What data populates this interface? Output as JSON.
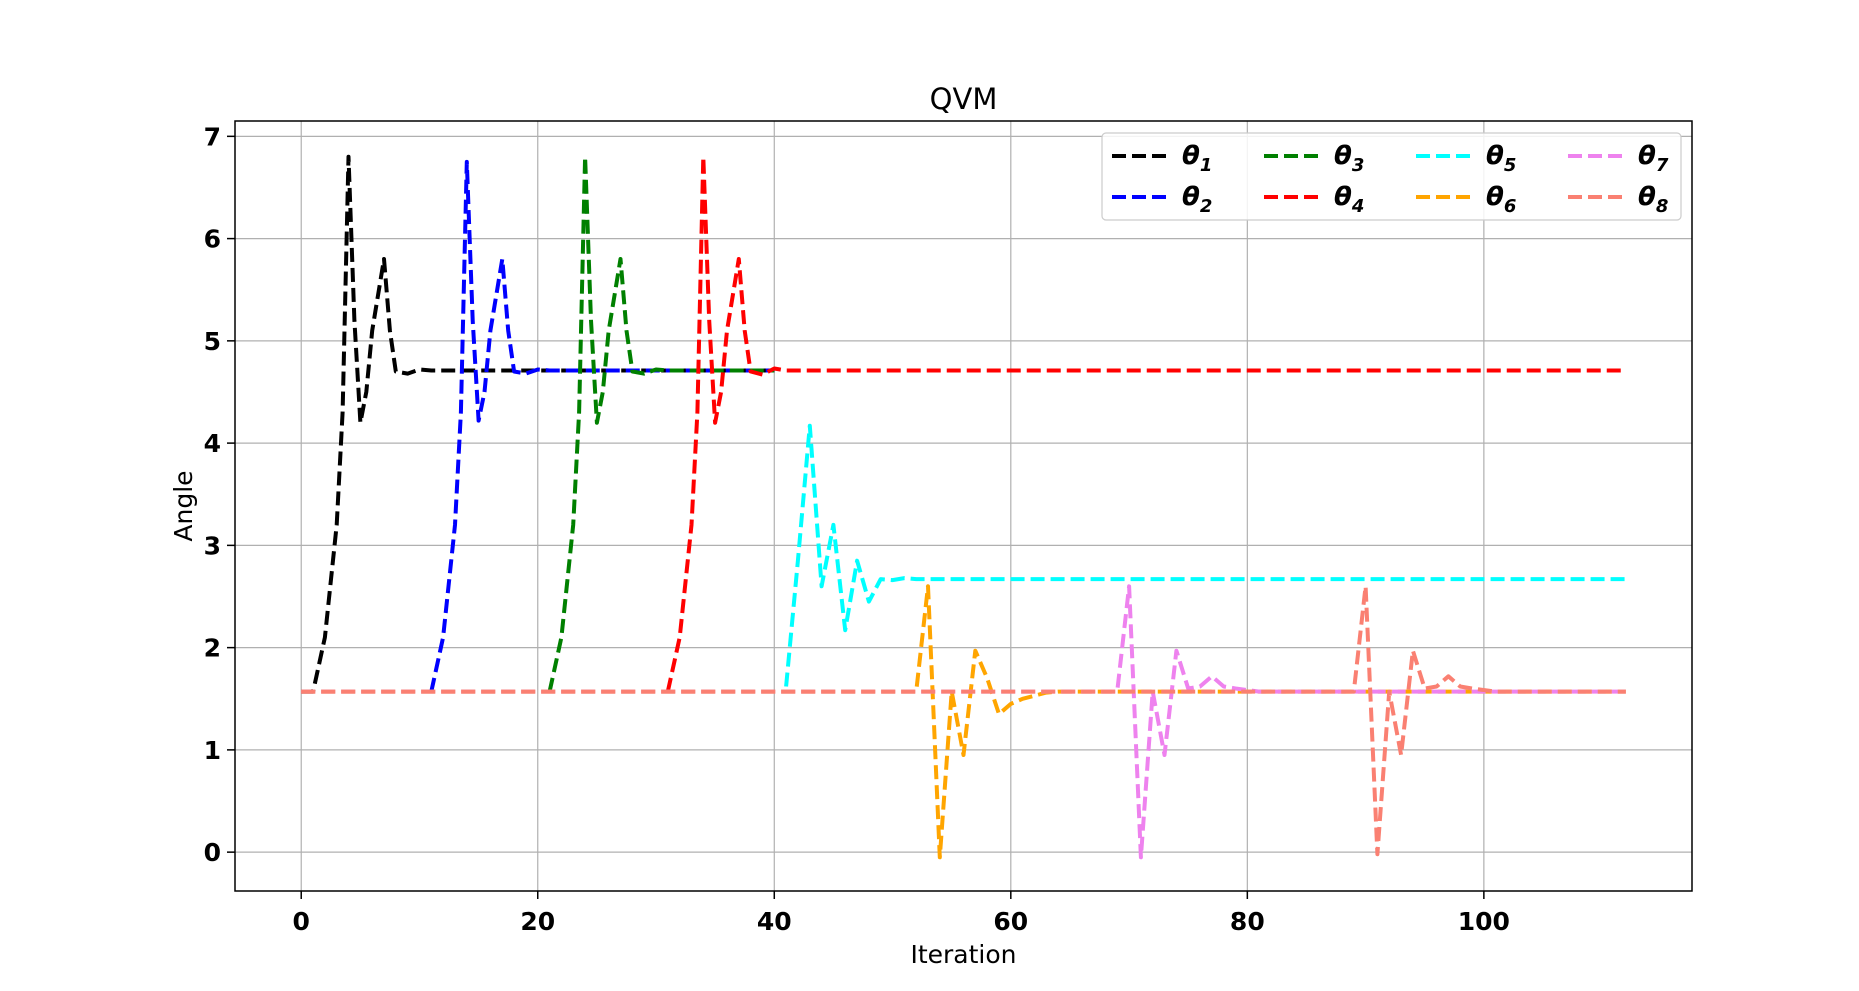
{
  "chart_data": {
    "type": "line",
    "title": "QVM",
    "xlabel": "Iteration",
    "ylabel": "Angle",
    "xlim": [
      -5.6,
      117.6
    ],
    "ylim": [
      -0.38,
      7.15
    ],
    "xticks": [
      0,
      20,
      40,
      60,
      80,
      100
    ],
    "yticks": [
      0,
      1,
      2,
      3,
      4,
      5,
      6,
      7
    ],
    "grid": true,
    "legend_position": "top-right",
    "legend_columns": 4,
    "line_style": "dashed",
    "series": [
      {
        "name": "θ",
        "sub": "1",
        "color": "#000000",
        "points": [
          [
            0,
            1.57
          ],
          [
            1,
            1.57
          ],
          [
            2,
            2.1
          ],
          [
            3,
            3.2
          ],
          [
            3.5,
            4.3
          ],
          [
            4,
            6.8
          ],
          [
            4.5,
            5.2
          ],
          [
            5,
            4.2
          ],
          [
            5.5,
            4.5
          ],
          [
            6,
            5.1
          ],
          [
            7,
            5.8
          ],
          [
            7.5,
            5.1
          ],
          [
            8,
            4.7
          ],
          [
            9,
            4.68
          ],
          [
            10,
            4.72
          ],
          [
            11,
            4.71
          ],
          [
            40,
            4.71
          ]
        ]
      },
      {
        "name": "θ",
        "sub": "2",
        "color": "#0000ff",
        "points": [
          [
            11,
            1.57
          ],
          [
            12,
            2.1
          ],
          [
            13,
            3.2
          ],
          [
            13.5,
            4.3
          ],
          [
            14,
            6.75
          ],
          [
            14.5,
            5.2
          ],
          [
            15,
            4.22
          ],
          [
            15.5,
            4.5
          ],
          [
            16,
            5.1
          ],
          [
            17,
            5.8
          ],
          [
            17.5,
            5.1
          ],
          [
            18,
            4.7
          ],
          [
            19,
            4.68
          ],
          [
            20,
            4.72
          ],
          [
            21,
            4.71
          ],
          [
            40,
            4.71
          ]
        ]
      },
      {
        "name": "θ",
        "sub": "3",
        "color": "#008000",
        "points": [
          [
            21,
            1.57
          ],
          [
            22,
            2.1
          ],
          [
            23,
            3.2
          ],
          [
            23.5,
            4.3
          ],
          [
            24,
            6.8
          ],
          [
            24.5,
            5.2
          ],
          [
            25,
            4.2
          ],
          [
            25.5,
            4.5
          ],
          [
            26,
            5.1
          ],
          [
            27,
            5.8
          ],
          [
            27.5,
            5.1
          ],
          [
            28,
            4.7
          ],
          [
            29,
            4.68
          ],
          [
            30,
            4.72
          ],
          [
            31,
            4.71
          ],
          [
            40,
            4.71
          ]
        ]
      },
      {
        "name": "θ",
        "sub": "4",
        "color": "#ff0000",
        "points": [
          [
            31,
            1.57
          ],
          [
            32,
            2.1
          ],
          [
            33,
            3.2
          ],
          [
            33.5,
            4.3
          ],
          [
            34,
            6.8
          ],
          [
            34.5,
            5.2
          ],
          [
            35,
            4.2
          ],
          [
            35.5,
            4.5
          ],
          [
            36,
            5.1
          ],
          [
            37,
            5.8
          ],
          [
            37.5,
            5.1
          ],
          [
            38,
            4.7
          ],
          [
            39,
            4.67
          ],
          [
            40,
            4.73
          ],
          [
            41,
            4.71
          ],
          [
            112,
            4.71
          ]
        ]
      },
      {
        "name": "θ",
        "sub": "5",
        "color": "#00ffff",
        "points": [
          [
            41,
            1.62
          ],
          [
            42,
            2.85
          ],
          [
            43,
            4.17
          ],
          [
            44,
            2.6
          ],
          [
            45,
            3.2
          ],
          [
            46,
            2.17
          ],
          [
            47,
            2.85
          ],
          [
            48,
            2.45
          ],
          [
            49,
            2.67
          ],
          [
            50,
            2.66
          ],
          [
            51,
            2.68
          ],
          [
            52,
            2.67
          ],
          [
            112,
            2.67
          ]
        ]
      },
      {
        "name": "θ",
        "sub": "6",
        "color": "#ffa500",
        "points": [
          [
            0,
            1.57
          ],
          [
            52,
            1.57
          ],
          [
            53,
            2.6
          ],
          [
            54,
            -0.05
          ],
          [
            55,
            1.57
          ],
          [
            56,
            0.95
          ],
          [
            57,
            1.97
          ],
          [
            58,
            1.7
          ],
          [
            59,
            1.35
          ],
          [
            60,
            1.45
          ],
          [
            61,
            1.5
          ],
          [
            63,
            1.56
          ],
          [
            64,
            1.57
          ],
          [
            112,
            1.57
          ]
        ]
      },
      {
        "name": "θ",
        "sub": "7",
        "color": "#ee82ee",
        "points": [
          [
            0,
            1.57
          ],
          [
            69,
            1.57
          ],
          [
            70,
            2.6
          ],
          [
            71,
            -0.05
          ],
          [
            72,
            1.57
          ],
          [
            73,
            0.95
          ],
          [
            74,
            1.97
          ],
          [
            75,
            1.6
          ],
          [
            76,
            1.62
          ],
          [
            77,
            1.72
          ],
          [
            78,
            1.62
          ],
          [
            79,
            1.6
          ],
          [
            81,
            1.57
          ],
          [
            112,
            1.57
          ]
        ]
      },
      {
        "name": "θ",
        "sub": "8",
        "color": "#fa8072",
        "points": [
          [
            0,
            1.57
          ],
          [
            89,
            1.57
          ],
          [
            90,
            2.6
          ],
          [
            91,
            -0.02
          ],
          [
            92,
            1.57
          ],
          [
            93,
            0.95
          ],
          [
            94,
            1.97
          ],
          [
            95,
            1.6
          ],
          [
            96,
            1.62
          ],
          [
            97,
            1.72
          ],
          [
            98,
            1.62
          ],
          [
            99,
            1.6
          ],
          [
            101,
            1.57
          ],
          [
            112,
            1.57
          ]
        ]
      }
    ]
  }
}
